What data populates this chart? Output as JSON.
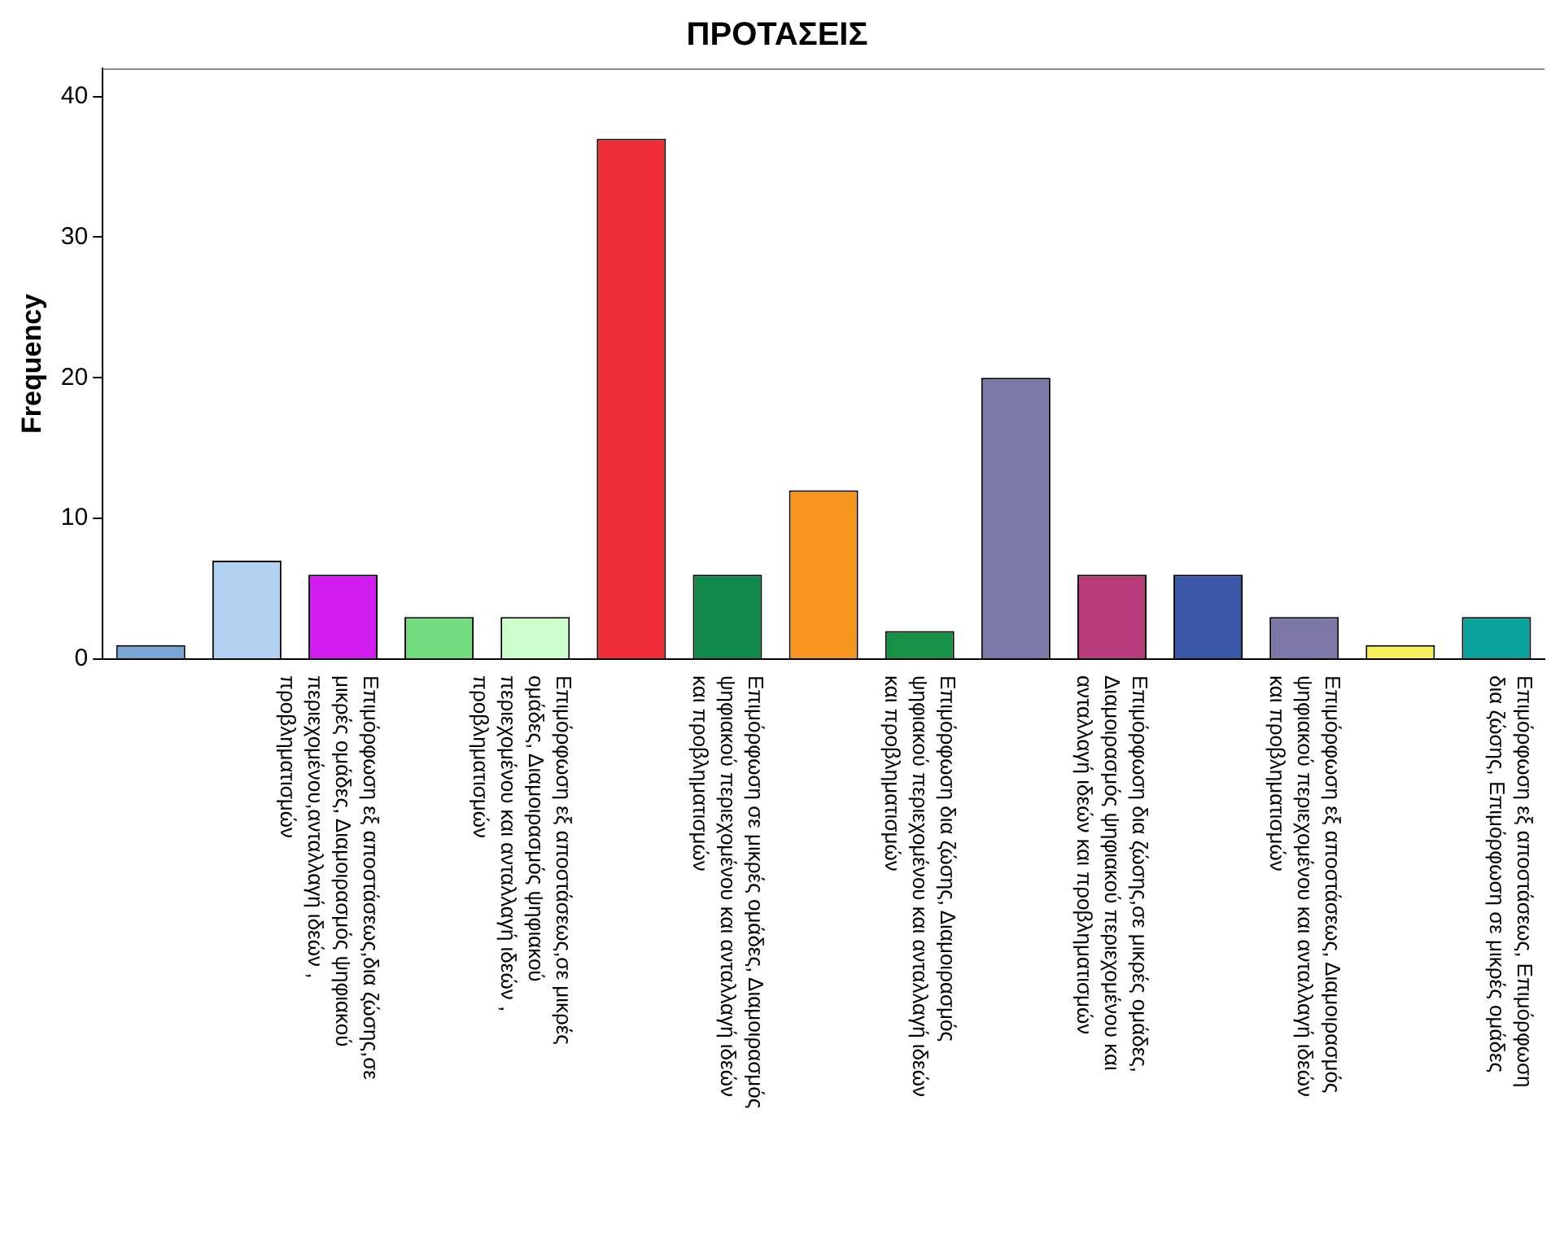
{
  "chart_data": {
    "type": "bar",
    "title": "ΠΡΟΤΑΣΕΙΣ",
    "ylabel": "Frequency",
    "categories": [
      null,
      null,
      "Επιμόρφωση εξ αποστάσεως,δια ζώσης,σε\nμικρές ομάδες, Διαμοιρασμός ψηφιακού\nπεριεχομένου,ανταλλαγή ιδεών ,\nπροβληματισμών",
      null,
      "Επιμόρφωση εξ αποστάσεως,σε μικρές\nομάδες, Διαμοιρασμός ψηφιακού\nπεριεχομένου και ανταλλαγή ιδεών ,\nπροβληματισμών",
      null,
      "Επιμόρφωση σε μικρές ομάδες, Διαμοιρασμός\nψηφιακού περιεχομένου και ανταλλαγή ιδεών\nκαι προβληματισμών",
      null,
      "Επιμόρφωση δια ζώσης, Διαμοιρασμός\nψηφιακού περιεχομένου και ανταλλαγή ιδεών\nκαι προβληματισμών",
      null,
      "Επιμόρφωση δια ζώσης,σε μικρές ομάδες,\nΔιαμοιρασμός ψηφιακού περιεχομένου και\nανταλλαγή ιδεών και προβληματισμών",
      null,
      "Επιμόρφωση εξ αποστάσεως, Διαμοιρασμός\nψηφιακού περιεχομένου και ανταλλαγή ιδεών\nκαι προβληματισμών",
      null,
      "Επιμόρφωση εξ αποστάσεως, Επιμόρφωση\nδια ζώσης, Επιμόρφωση σε μικρές ομάδες"
    ],
    "values": [
      1,
      7,
      6,
      3,
      3,
      37,
      6,
      12,
      2,
      20,
      6,
      6,
      3,
      1,
      3
    ],
    "colors": [
      "#7aa6d6",
      "#b3d1f0",
      "#d21ef0",
      "#72dc7e",
      "#ccffcc",
      "#ef2d36",
      "#10894a",
      "#f7961f",
      "#169146",
      "#7a78a6",
      "#b83b7c",
      "#3b57a8",
      "#7b78a8",
      "#f5ef5a",
      "#0aa39c"
    ],
    "ylim": [
      0,
      42
    ],
    "yticks": [
      0,
      10,
      20,
      30,
      40
    ],
    "grid": false,
    "legend": false
  }
}
